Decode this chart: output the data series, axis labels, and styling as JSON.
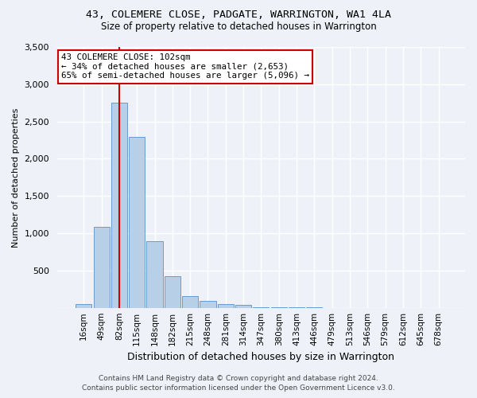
{
  "title": "43, COLEMERE CLOSE, PADGATE, WARRINGTON, WA1 4LA",
  "subtitle": "Size of property relative to detached houses in Warrington",
  "xlabel": "Distribution of detached houses by size in Warrington",
  "ylabel": "Number of detached properties",
  "bar_color": "#b8cfe8",
  "bar_edge_color": "#5b8fc9",
  "background_color": "#eef2f8",
  "grid_color": "#ffffff",
  "categories": [
    "16sqm",
    "49sqm",
    "82sqm",
    "115sqm",
    "148sqm",
    "182sqm",
    "215sqm",
    "248sqm",
    "281sqm",
    "314sqm",
    "347sqm",
    "380sqm",
    "413sqm",
    "446sqm",
    "479sqm",
    "513sqm",
    "546sqm",
    "579sqm",
    "612sqm",
    "645sqm",
    "678sqm"
  ],
  "values": [
    50,
    1090,
    2750,
    2290,
    890,
    420,
    155,
    95,
    55,
    40,
    12,
    8,
    4,
    2,
    1,
    1,
    0,
    0,
    0,
    0,
    0
  ],
  "ylim": [
    0,
    3500
  ],
  "yticks": [
    0,
    500,
    1000,
    1500,
    2000,
    2500,
    3000,
    3500
  ],
  "vline_color": "#cc0000",
  "annotation_text": "43 COLEMERE CLOSE: 102sqm\n← 34% of detached houses are smaller (2,653)\n65% of semi-detached houses are larger (5,096) →",
  "annotation_box_color": "#ffffff",
  "annotation_box_edge_color": "#cc0000",
  "footer_line1": "Contains HM Land Registry data © Crown copyright and database right 2024.",
  "footer_line2": "Contains public sector information licensed under the Open Government Licence v3.0."
}
